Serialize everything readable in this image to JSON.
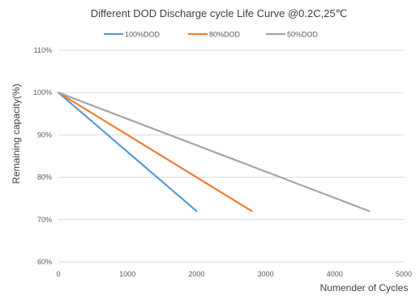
{
  "chart_data": {
    "type": "line",
    "title": "Different DOD Discharge cycle Life Curve @0.2C,25℃",
    "xlabel": "Numender of Cycles",
    "ylabel": "Remaining capacity(%)",
    "xlim": [
      0,
      5000
    ],
    "ylim": [
      60,
      110
    ],
    "xticks": [
      0,
      1000,
      2000,
      3000,
      4000,
      5000
    ],
    "xtick_labels": [
      "0",
      "1000",
      "2000",
      "3000",
      "4000",
      "5000"
    ],
    "yticks": [
      60,
      70,
      80,
      90,
      100,
      110
    ],
    "ytick_labels": [
      "60%",
      "70%",
      "80%",
      "90%",
      "100%",
      "110%"
    ],
    "grid": true,
    "legend_position": "top-center",
    "series": [
      {
        "name": "100%DOD",
        "color": "#5b9bd5",
        "x": [
          0,
          2000
        ],
        "y": [
          100,
          72
        ]
      },
      {
        "name": "80%DOD",
        "color": "#ed7d31",
        "x": [
          0,
          2800
        ],
        "y": [
          100,
          72
        ]
      },
      {
        "name": "50%DOD",
        "color": "#a5a5a5",
        "x": [
          0,
          4500
        ],
        "y": [
          100,
          72
        ]
      }
    ]
  }
}
